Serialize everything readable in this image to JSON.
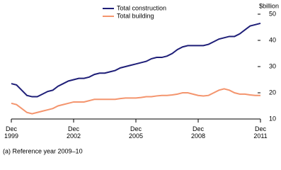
{
  "chart_data": {
    "type": "line",
    "y_label": "$billion",
    "note": "(a) Reference year 2009–10",
    "categories": [
      "Dec\n1999",
      null,
      null,
      null,
      null,
      null,
      null,
      null,
      null,
      null,
      null,
      null,
      "Dec\n2002",
      null,
      null,
      null,
      null,
      null,
      null,
      null,
      null,
      null,
      null,
      null,
      "Dec\n2005",
      null,
      null,
      null,
      null,
      null,
      null,
      null,
      null,
      null,
      null,
      null,
      "Dec\n2008",
      null,
      null,
      null,
      null,
      null,
      null,
      null,
      null,
      null,
      null,
      null,
      "Dec\n2011"
    ],
    "series": [
      {
        "name": "Total construction",
        "color": "#1f1f78",
        "values": [
          23.5,
          23,
          21,
          19,
          18.5,
          18.5,
          19.5,
          20.5,
          21,
          22.5,
          23.5,
          24.5,
          25,
          25.5,
          25.5,
          26,
          27,
          27.5,
          27.5,
          28,
          28.5,
          29.5,
          30,
          30.5,
          31,
          31.5,
          32,
          33,
          33.5,
          33.5,
          34,
          35,
          36.5,
          37.5,
          38,
          38,
          38,
          38,
          38.5,
          39.5,
          40.5,
          41,
          41.5,
          41.5,
          42.5,
          44,
          45.5,
          46,
          46.5
        ]
      },
      {
        "name": "Total building",
        "color": "#f4956e",
        "values": [
          16,
          15.5,
          14,
          12.5,
          12,
          12.5,
          13,
          13.5,
          14,
          15,
          15.5,
          16,
          16.5,
          16.5,
          16.5,
          17,
          17.5,
          17.5,
          17.5,
          17.5,
          17.5,
          17.8,
          18,
          18,
          18,
          18.2,
          18.5,
          18.5,
          18.8,
          19,
          19,
          19.2,
          19.5,
          20,
          20,
          19.5,
          19,
          18.8,
          19,
          20,
          21,
          21.5,
          21,
          20,
          19.5,
          19.5,
          19.2,
          19,
          19
        ]
      }
    ],
    "ylim": [
      10,
      50
    ],
    "yticks": [
      10,
      20,
      30,
      40,
      50
    ]
  }
}
